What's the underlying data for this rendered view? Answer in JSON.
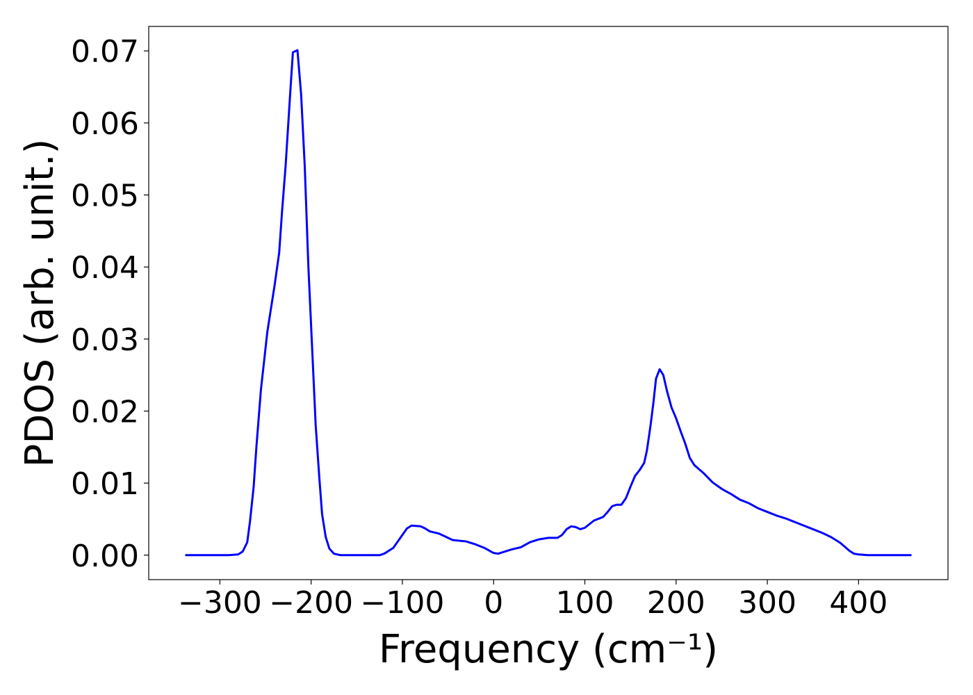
{
  "chart_data": {
    "type": "line",
    "xlabel": "Frequency (cm⁻¹)",
    "ylabel": "PDOS (arb. unit.)",
    "xlim": [
      -378,
      498
    ],
    "ylim": [
      -0.0034,
      0.0734
    ],
    "xticks": [
      {
        "value": -300,
        "label": "−300"
      },
      {
        "value": -200,
        "label": "−200"
      },
      {
        "value": -100,
        "label": "−100"
      },
      0,
      100,
      200,
      300,
      400
    ],
    "yticks": [
      {
        "value": 0,
        "label": "0.00"
      },
      0.01,
      0.02,
      0.03,
      0.04,
      0.05,
      0.06,
      0.07
    ],
    "grid": false,
    "series": [
      {
        "color": "#0000ff",
        "x": [
          -338,
          -290,
          -280,
          -275,
          -270,
          -267,
          -263,
          -260,
          -255,
          -248,
          -240,
          -235,
          -232,
          -228,
          -223,
          -220,
          -215,
          -211,
          -207,
          -203,
          -199,
          -195,
          -191,
          -188,
          -184,
          -180,
          -175,
          -168,
          -125,
          -120,
          -110,
          -100,
          -95,
          -90,
          -80,
          -75,
          -70,
          -60,
          -50,
          -45,
          -30,
          -20,
          -10,
          0,
          5,
          10,
          20,
          30,
          40,
          50,
          60,
          70,
          75,
          80,
          85,
          90,
          95,
          100,
          110,
          120,
          125,
          130,
          135,
          140,
          145,
          150,
          155,
          160,
          165,
          168,
          172,
          175,
          178,
          182,
          186,
          190,
          195,
          200,
          205,
          210,
          215,
          220,
          230,
          240,
          250,
          260,
          270,
          280,
          290,
          300,
          310,
          320,
          330,
          340,
          350,
          360,
          370,
          380,
          390,
          395,
          400,
          410,
          458
        ],
        "values": [
          0,
          0,
          0.0001,
          0.0005,
          0.0018,
          0.0047,
          0.0095,
          0.015,
          0.023,
          0.031,
          0.0375,
          0.042,
          0.0475,
          0.054,
          0.064,
          0.0698,
          0.0701,
          0.064,
          0.054,
          0.04,
          0.029,
          0.018,
          0.0107,
          0.0057,
          0.0025,
          0.0009,
          0.0002,
          0,
          0,
          0.0002,
          0.001,
          0.0028,
          0.0037,
          0.0041,
          0.004,
          0.0037,
          0.0033,
          0.003,
          0.0024,
          0.0021,
          0.0019,
          0.0015,
          0.001,
          0.0003,
          0.0002,
          0.0004,
          0.0008,
          0.0011,
          0.0018,
          0.0022,
          0.0024,
          0.0024,
          0.0028,
          0.0036,
          0.004,
          0.0039,
          0.0036,
          0.0038,
          0.0048,
          0.0053,
          0.006,
          0.0068,
          0.007,
          0.007,
          0.0079,
          0.0095,
          0.011,
          0.0118,
          0.0128,
          0.0145,
          0.018,
          0.021,
          0.0245,
          0.0258,
          0.025,
          0.0228,
          0.0205,
          0.019,
          0.0172,
          0.0155,
          0.0135,
          0.0125,
          0.0114,
          0.0101,
          0.0092,
          0.0085,
          0.0077,
          0.0072,
          0.0065,
          0.006,
          0.0055,
          0.0051,
          0.0046,
          0.0041,
          0.0036,
          0.0031,
          0.0025,
          0.0017,
          0.0006,
          0.0002,
          0.0001,
          0,
          0
        ]
      }
    ]
  }
}
